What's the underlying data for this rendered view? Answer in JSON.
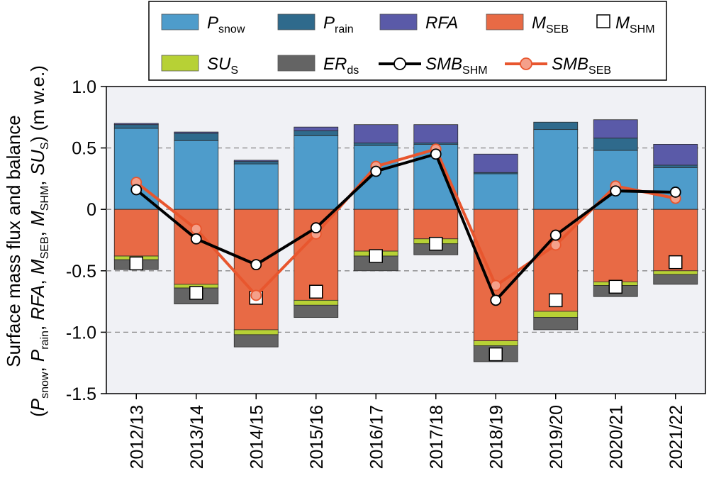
{
  "chart_data": {
    "type": "bar",
    "subtype": "stacked bar with line overlay",
    "categories": [
      "2012/13",
      "2013/14",
      "2014/15",
      "2015/16",
      "2016/17",
      "2017/18",
      "2018/19",
      "2019/20",
      "2020/21",
      "2021/22"
    ],
    "ylabel_line1": "Surface mass flux and balance",
    "ylabel_line2": "(Psnow, Prain, RFA, MSEB, MSHM, SUS) (m w.e.)",
    "ylim": [
      -1.5,
      1.0
    ],
    "yticks": [
      1.0,
      0.5,
      0,
      -0.5,
      -1.0,
      -1.5
    ],
    "ytick_labels": [
      "1.0",
      "0.5",
      "0",
      "-0.5",
      "-1.0",
      "-1.5"
    ],
    "grid": "dashed horizontal at 0.5, 0, -0.5, -1.0",
    "legend": "top, two rows",
    "positive_stack": [
      {
        "name": "P_snow",
        "color": "#4e9ccb",
        "values": [
          0.66,
          0.56,
          0.37,
          0.6,
          0.52,
          0.53,
          0.29,
          0.65,
          0.48,
          0.34
        ]
      },
      {
        "name": "P_rain",
        "color": "#2f6a8c",
        "values": [
          0.03,
          0.06,
          0.02,
          0.04,
          0.02,
          0.01,
          0.01,
          0.06,
          0.1,
          0.02
        ]
      },
      {
        "name": "RFA",
        "color": "#5a5aa8",
        "values": [
          0.01,
          0.01,
          0.01,
          0.03,
          0.15,
          0.15,
          0.15,
          0.0,
          0.15,
          0.17
        ]
      }
    ],
    "negative_stack": [
      {
        "name": "M_SEB",
        "color": "#e86a45",
        "values": [
          -0.38,
          -0.61,
          -0.98,
          -0.74,
          -0.34,
          -0.24,
          -1.07,
          -0.83,
          -0.59,
          -0.5
        ]
      },
      {
        "name": "SU_S",
        "color": "#b7d135",
        "values": [
          -0.03,
          -0.03,
          -0.04,
          -0.04,
          -0.04,
          -0.04,
          -0.04,
          -0.05,
          -0.03,
          -0.03
        ]
      },
      {
        "name": "ER_ds",
        "color": "#646464",
        "values": [
          -0.08,
          -0.13,
          -0.1,
          -0.1,
          -0.12,
          -0.09,
          -0.13,
          -0.1,
          -0.09,
          -0.08
        ]
      }
    ],
    "markers": {
      "name": "M_SHM",
      "values": [
        -0.44,
        -0.68,
        -0.72,
        -0.67,
        -0.38,
        -0.28,
        -1.18,
        -0.74,
        -0.63,
        -0.43
      ]
    },
    "series": [
      {
        "name": "SMB_SHM",
        "color": "#000000",
        "values": [
          0.16,
          -0.24,
          -0.45,
          -0.15,
          0.31,
          0.45,
          -0.74,
          -0.21,
          0.15,
          0.14
        ]
      },
      {
        "name": "SMB_SEB",
        "color": "#e8562e",
        "values": [
          0.22,
          -0.16,
          -0.7,
          -0.2,
          0.35,
          0.49,
          -0.62,
          -0.29,
          0.19,
          0.09
        ]
      }
    ]
  },
  "legend": {
    "p_snow": {
      "main": "P",
      "sub": "snow"
    },
    "p_rain": {
      "main": "P",
      "sub": "rain"
    },
    "rfa": {
      "main": "RFA",
      "sub": ""
    },
    "m_seb": {
      "main": "M",
      "sub": "SEB"
    },
    "m_shm": {
      "main": "M",
      "sub": "SHM"
    },
    "su_s": {
      "main": "SU",
      "sub": "S"
    },
    "er_ds": {
      "main": "ER",
      "sub": "ds"
    },
    "smb_shm": {
      "main": "SMB",
      "sub": "SHM"
    },
    "smb_seb": {
      "main": "SMB",
      "sub": "SEB"
    }
  },
  "ylabel": {
    "line1": "Surface mass flux and balance",
    "open_paren": "(",
    "psnow_main": "P",
    "psnow_sub": "snow",
    "comma1": ", ",
    "prain_main": "P",
    "prain_sub": "rain",
    "comma2": ", ",
    "rfa": "RFA",
    "comma3": ", ",
    "mseb_main": "M",
    "mseb_sub": "SEB",
    "comma4": ", ",
    "mshm_main": "M",
    "mshm_sub": "SHM",
    "comma5": ", ",
    "sus_main": "SU",
    "sus_sub": "S",
    "units": ") (m w.e.)"
  },
  "colors": {
    "plot_bg": "#f0f1f5",
    "grid": "#888888"
  }
}
